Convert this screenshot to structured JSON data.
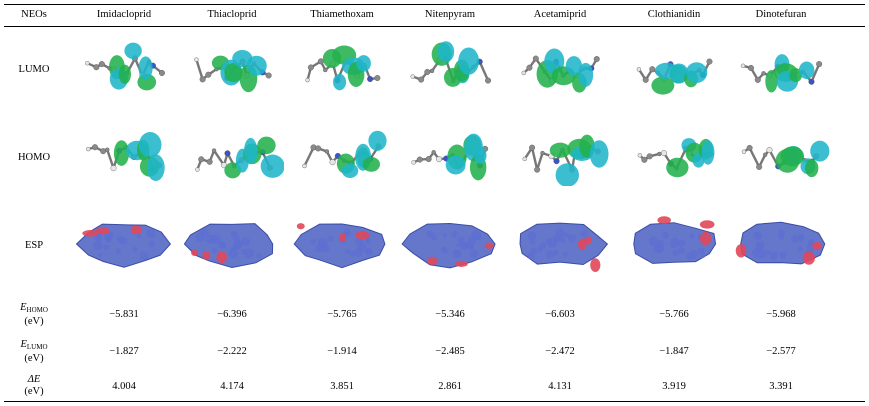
{
  "header": {
    "row_label": "NEOs",
    "columns": [
      "Imidacloprid",
      "Thiacloprid",
      "Thiamethoxam",
      "Nitenpyram",
      "Acetamiprid",
      "Clothianidin",
      "Dinotefuran"
    ]
  },
  "image_rows": [
    {
      "label": "LUMO",
      "kind": "orbital-lumo"
    },
    {
      "label": "HOMO",
      "kind": "orbital-homo"
    },
    {
      "label": "ESP",
      "kind": "esp-surface"
    }
  ],
  "value_rows": [
    {
      "symbol": "E",
      "sub": "HOMO",
      "unit": "(eV)",
      "values": [
        "−5.831",
        "−6.396",
        "−5.765",
        "−5.346",
        "−6.603",
        "−5.766",
        "−5.968"
      ]
    },
    {
      "symbol": "E",
      "sub": "LUMO",
      "unit": "(eV)",
      "values": [
        "−1.827",
        "−2.222",
        "−1.914",
        "−2.485",
        "−2.472",
        "−1.847",
        "−2.577"
      ]
    },
    {
      "symbol": "ΔE",
      "sub": "",
      "unit": "(eV)",
      "values": [
        "4.004",
        "4.174",
        "3.851",
        "2.861",
        "4.131",
        "3.919",
        "3.391"
      ]
    }
  ],
  "colors": {
    "lobe_green": "#22b14c",
    "lobe_cyan": "#1fb5c9",
    "esp_blue": "#4a5fc1",
    "esp_red": "#e0475a",
    "atom_grey": "#8a8a8a",
    "atom_white": "#e6e6e6"
  }
}
